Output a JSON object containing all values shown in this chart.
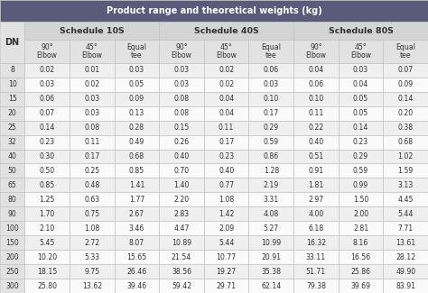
{
  "title": "Product range and theoretical weights (kg)",
  "col_groups": [
    {
      "label": "Schedule 10S",
      "span": 3
    },
    {
      "label": "Schedule 40S",
      "span": 3
    },
    {
      "label": "Schedule 80S",
      "span": 3
    }
  ],
  "sub_headers": [
    "90°\nElbow",
    "45°\nElbow",
    "Equal\ntee"
  ],
  "dn_col": "DN",
  "rows": [
    [
      8,
      0.02,
      0.01,
      0.03,
      0.03,
      0.02,
      0.06,
      0.04,
      0.03,
      0.07
    ],
    [
      10,
      0.03,
      0.02,
      0.05,
      0.03,
      0.02,
      0.03,
      0.06,
      0.04,
      0.09
    ],
    [
      15,
      0.06,
      0.03,
      0.09,
      0.08,
      0.04,
      0.1,
      0.1,
      0.05,
      0.14
    ],
    [
      20,
      0.07,
      0.03,
      0.13,
      0.08,
      0.04,
      0.17,
      0.11,
      0.05,
      0.2
    ],
    [
      25,
      0.14,
      0.08,
      0.28,
      0.15,
      0.11,
      0.29,
      0.22,
      0.14,
      0.38
    ],
    [
      32,
      0.23,
      0.11,
      0.49,
      0.26,
      0.17,
      0.59,
      0.4,
      0.23,
      0.68
    ],
    [
      40,
      0.3,
      0.17,
      0.68,
      0.4,
      0.23,
      0.86,
      0.51,
      0.29,
      1.02
    ],
    [
      50,
      0.5,
      0.25,
      0.85,
      0.7,
      0.4,
      1.28,
      0.91,
      0.59,
      1.59
    ],
    [
      65,
      0.85,
      0.48,
      1.41,
      1.4,
      0.77,
      2.19,
      1.81,
      0.99,
      3.13
    ],
    [
      80,
      1.25,
      0.63,
      1.77,
      2.2,
      1.08,
      3.31,
      2.97,
      1.5,
      4.45
    ],
    [
      90,
      1.7,
      0.75,
      2.67,
      2.83,
      1.42,
      4.08,
      4.0,
      2.0,
      5.44
    ],
    [
      100,
      2.1,
      1.08,
      3.46,
      4.47,
      2.09,
      5.27,
      6.18,
      2.81,
      7.71
    ],
    [
      150,
      5.45,
      2.72,
      8.07,
      10.89,
      5.44,
      10.99,
      16.32,
      8.16,
      13.61
    ],
    [
      200,
      10.2,
      5.33,
      15.65,
      21.54,
      10.77,
      20.91,
      33.11,
      16.56,
      28.12
    ],
    [
      250,
      18.15,
      9.75,
      26.46,
      38.56,
      19.27,
      35.38,
      51.71,
      25.86,
      49.9
    ],
    [
      300,
      25.8,
      13.62,
      39.46,
      59.42,
      29.71,
      62.14,
      79.38,
      39.69,
      83.91
    ]
  ],
  "title_bg": "#5a5a7a",
  "title_fg": "#ffffff",
  "header_bg": "#d4d4d4",
  "header_fg": "#333333",
  "subheader_bg": "#e2e2e2",
  "subheader_fg": "#333333",
  "row_even_bg": "#efefef",
  "row_odd_bg": "#fafafa",
  "grid_color": "#bbbbbb",
  "dn_col_bg": "#e2e2e2",
  "col_widths_rel": [
    0.55,
    1.0,
    1.0,
    1.0,
    1.0,
    1.0,
    1.0,
    1.0,
    1.0,
    1.0
  ]
}
